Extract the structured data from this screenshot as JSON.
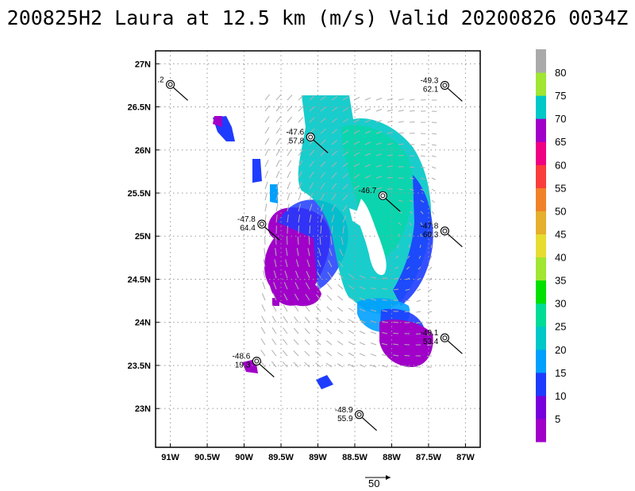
{
  "title": "200825H2 Laura at 12.5 km (m/s) Valid 20200826 0034Z",
  "map": {
    "lon_range": [
      -91.2,
      -86.8
    ],
    "lat_range": [
      22.55,
      27.15
    ],
    "lat_ticks": [
      {
        "value": 27.0,
        "label": "27N"
      },
      {
        "value": 26.5,
        "label": "26.5N"
      },
      {
        "value": 26.0,
        "label": "26N"
      },
      {
        "value": 25.5,
        "label": "25.5N"
      },
      {
        "value": 25.0,
        "label": "25N"
      },
      {
        "value": 24.5,
        "label": "24.5N"
      },
      {
        "value": 24.0,
        "label": "24N"
      },
      {
        "value": 23.5,
        "label": "23.5N"
      },
      {
        "value": 23.0,
        "label": "23N"
      }
    ],
    "lon_ticks": [
      {
        "value": -91.0,
        "label": "91W"
      },
      {
        "value": -90.5,
        "label": "90.5W"
      },
      {
        "value": -90.0,
        "label": "90W"
      },
      {
        "value": -89.5,
        "label": "89.5W"
      },
      {
        "value": -89.0,
        "label": "89W"
      },
      {
        "value": -88.5,
        "label": "88.5W"
      },
      {
        "value": -88.0,
        "label": "88W"
      },
      {
        "value": -87.5,
        "label": "87.5W"
      },
      {
        "value": -87.0,
        "label": "87W"
      }
    ],
    "grid": true,
    "dropsondes": [
      {
        "lon": -91.0,
        "lat": 26.76,
        "t1": ".2",
        "t2": ""
      },
      {
        "lon": -87.28,
        "lat": 26.75,
        "t1": "-49.3",
        "t2": "62.1"
      },
      {
        "lon": -89.1,
        "lat": 26.15,
        "t1": "-47.6",
        "t2": "57.8"
      },
      {
        "lon": -88.12,
        "lat": 25.47,
        "t1": "-46.7",
        "t2": ""
      },
      {
        "lon": -89.76,
        "lat": 25.14,
        "t1": "-47.8",
        "t2": "64.4"
      },
      {
        "lon": -87.28,
        "lat": 25.06,
        "t1": "-47.8",
        "t2": "60.3"
      },
      {
        "lon": -87.28,
        "lat": 23.82,
        "t1": "-49.1",
        "t2": "53.4"
      },
      {
        "lon": -89.83,
        "lat": 23.55,
        "t1": "-48.6",
        "t2": "19.3"
      },
      {
        "lon": -88.44,
        "lat": 22.93,
        "t1": "-48.9",
        "t2": "55.9"
      }
    ]
  },
  "legend": {
    "levels": [
      "5",
      "10",
      "15",
      "20",
      "25",
      "30",
      "35",
      "40",
      "45",
      "50",
      "55",
      "60",
      "65",
      "70",
      "75",
      "80"
    ],
    "colors": [
      "#a000c8",
      "#7800dc",
      "#1e3cff",
      "#00a0ff",
      "#00c8c8",
      "#00dc96",
      "#00e000",
      "#a0e632",
      "#e6dc32",
      "#e6af2d",
      "#f08228",
      "#fa3c3c",
      "#f00082",
      "#a000c8",
      "#00c8c8",
      "#a0e632",
      "#aaaaaa"
    ]
  },
  "reference_vector": {
    "label": "50"
  }
}
